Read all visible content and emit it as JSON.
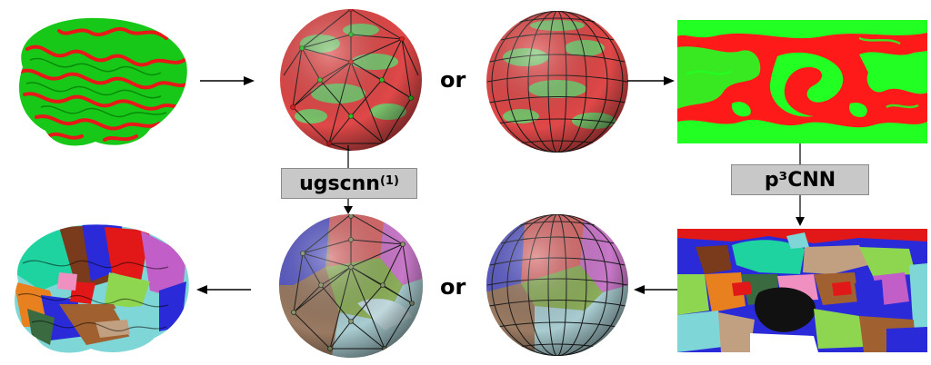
{
  "labels": {
    "or_top": "or",
    "or_bottom": "or",
    "method_left": "ugscnn",
    "method_left_sup": "(1)",
    "method_right": "p³CNN"
  },
  "colors": {
    "red": "#ff2020",
    "green": "#22ff22",
    "box_fill": "#c8c8c8",
    "box_border": "#8a8a8a",
    "parcel_palette": [
      "#2a2ad8",
      "#e21818",
      "#1fd3a0",
      "#7a3b1c",
      "#c25ec8",
      "#8fd650",
      "#7fd6d6",
      "#e88020",
      "#111111",
      "#c0a080",
      "#ffffff",
      "#3a6a40",
      "#f090c0",
      "#a06030"
    ]
  },
  "icons": {
    "brain_input": "brain-curvature-map",
    "sphere_icosahedral_input": "icosahedral-mesh-sphere",
    "sphere_latlong_input": "latlong-grid-sphere",
    "planar_projection_input": "equirectangular-projection",
    "brain_output": "brain-parcellation",
    "sphere_icosahedral_output": "icosahedral-parcellation-sphere",
    "sphere_latlong_output": "latlong-parcellation-sphere",
    "planar_projection_output": "equirectangular-parcellation"
  }
}
